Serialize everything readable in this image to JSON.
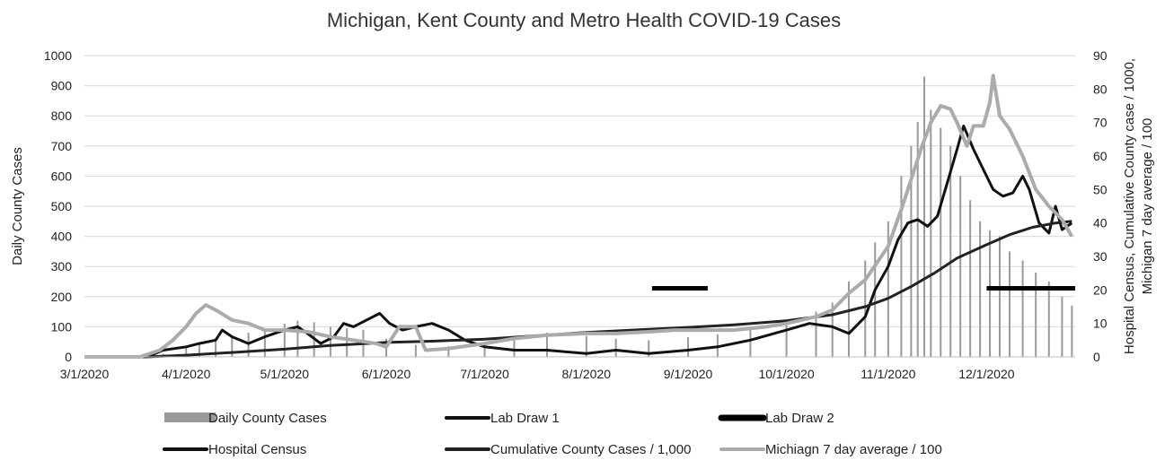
{
  "chart_data": {
    "type": "bar+line",
    "title": "Michigan, Kent County and Metro Health COVID-19 Cases",
    "ylabel_left": "Daily County Cases",
    "ylabel_right_line1": "Hospital Census, Cumulative County case / 1000,",
    "ylabel_right_line2": "Michigan 7 day average / 100",
    "ylim_left": [
      0,
      1000
    ],
    "ylim_right": [
      0,
      90
    ],
    "yticks_left": [
      "0",
      "100",
      "200",
      "300",
      "400",
      "500",
      "600",
      "700",
      "800",
      "900",
      "1000"
    ],
    "yticks_right": [
      "0",
      "10",
      "20",
      "30",
      "40",
      "50",
      "60",
      "70",
      "80",
      "90"
    ],
    "x_tick_labels": [
      "3/1/2020",
      "4/1/2020",
      "5/1/2020",
      "6/1/2020",
      "7/1/2020",
      "8/1/2020",
      "9/1/2020",
      "10/1/2020",
      "11/1/2020",
      "12/1/2020"
    ],
    "x_tick_dates": [
      "2020-03-01",
      "2020-04-01",
      "2020-05-01",
      "2020-06-01",
      "2020-07-01",
      "2020-08-01",
      "2020-09-01",
      "2020-10-01",
      "2020-11-01",
      "2020-12-01"
    ],
    "x_range": [
      "2020-03-01",
      "2020-12-28"
    ],
    "grid": true,
    "legend_position": "bottom",
    "legend": [
      {
        "label": "Daily County Cases",
        "style": "bar",
        "color": "#9a9a9a"
      },
      {
        "label": "Lab Draw 1",
        "style": "line",
        "color": "#111111"
      },
      {
        "label": "Lab Draw 2",
        "style": "thick-line",
        "color": "#000000"
      },
      {
        "label": "Hospital Census",
        "style": "line",
        "color": "#111111"
      },
      {
        "label": "Cumulative County Cases / 1,000",
        "style": "line",
        "color": "#222222"
      },
      {
        "label": "Michiagn  7 day average / 100",
        "style": "line",
        "color": "#ababab"
      }
    ],
    "series": [
      {
        "name": "Daily County Cases",
        "axis": "left",
        "type": "bar",
        "color": "#9a9a9a",
        "points": [
          [
            "2020-03-20",
            3
          ],
          [
            "2020-03-25",
            10
          ],
          [
            "2020-04-01",
            30
          ],
          [
            "2020-04-05",
            45
          ],
          [
            "2020-04-10",
            60
          ],
          [
            "2020-04-15",
            70
          ],
          [
            "2020-04-20",
            80
          ],
          [
            "2020-04-25",
            95
          ],
          [
            "2020-05-01",
            110
          ],
          [
            "2020-05-05",
            120
          ],
          [
            "2020-05-10",
            115
          ],
          [
            "2020-05-15",
            100
          ],
          [
            "2020-05-20",
            95
          ],
          [
            "2020-05-25",
            90
          ],
          [
            "2020-06-01",
            60
          ],
          [
            "2020-06-10",
            40
          ],
          [
            "2020-06-20",
            35
          ],
          [
            "2020-07-01",
            50
          ],
          [
            "2020-07-10",
            70
          ],
          [
            "2020-07-20",
            80
          ],
          [
            "2020-08-01",
            70
          ],
          [
            "2020-08-10",
            60
          ],
          [
            "2020-08-20",
            55
          ],
          [
            "2020-09-01",
            65
          ],
          [
            "2020-09-10",
            75
          ],
          [
            "2020-09-20",
            90
          ],
          [
            "2020-10-01",
            110
          ],
          [
            "2020-10-10",
            150
          ],
          [
            "2020-10-15",
            180
          ],
          [
            "2020-10-20",
            250
          ],
          [
            "2020-10-25",
            320
          ],
          [
            "2020-10-28",
            380
          ],
          [
            "2020-11-01",
            450
          ],
          [
            "2020-11-05",
            600
          ],
          [
            "2020-11-08",
            700
          ],
          [
            "2020-11-10",
            780
          ],
          [
            "2020-11-12",
            930
          ],
          [
            "2020-11-14",
            820
          ],
          [
            "2020-11-17",
            760
          ],
          [
            "2020-11-20",
            700
          ],
          [
            "2020-11-23",
            600
          ],
          [
            "2020-11-26",
            520
          ],
          [
            "2020-11-29",
            450
          ],
          [
            "2020-12-02",
            420
          ],
          [
            "2020-12-05",
            400
          ],
          [
            "2020-12-08",
            350
          ],
          [
            "2020-12-12",
            320
          ],
          [
            "2020-12-16",
            280
          ],
          [
            "2020-12-20",
            250
          ],
          [
            "2020-12-24",
            200
          ],
          [
            "2020-12-27",
            170
          ]
        ]
      },
      {
        "name": "Hospital Census",
        "axis": "right",
        "type": "line",
        "color": "#111111",
        "points": [
          [
            "2020-03-20",
            0
          ],
          [
            "2020-03-25",
            2
          ],
          [
            "2020-04-01",
            3
          ],
          [
            "2020-04-05",
            4
          ],
          [
            "2020-04-10",
            5
          ],
          [
            "2020-04-12",
            8
          ],
          [
            "2020-04-15",
            6
          ],
          [
            "2020-04-20",
            4
          ],
          [
            "2020-04-25",
            6
          ],
          [
            "2020-05-01",
            8
          ],
          [
            "2020-05-05",
            9
          ],
          [
            "2020-05-08",
            7
          ],
          [
            "2020-05-12",
            4
          ],
          [
            "2020-05-16",
            6
          ],
          [
            "2020-05-19",
            10
          ],
          [
            "2020-05-22",
            9
          ],
          [
            "2020-05-26",
            11
          ],
          [
            "2020-05-30",
            13
          ],
          [
            "2020-06-02",
            10
          ],
          [
            "2020-06-06",
            8
          ],
          [
            "2020-06-10",
            9
          ],
          [
            "2020-06-15",
            10
          ],
          [
            "2020-06-20",
            8
          ],
          [
            "2020-06-25",
            5
          ],
          [
            "2020-07-01",
            3
          ],
          [
            "2020-07-10",
            2
          ],
          [
            "2020-07-20",
            2
          ],
          [
            "2020-08-01",
            1
          ],
          [
            "2020-08-10",
            2
          ],
          [
            "2020-08-20",
            1
          ],
          [
            "2020-09-01",
            2
          ],
          [
            "2020-09-10",
            3
          ],
          [
            "2020-09-20",
            5
          ],
          [
            "2020-10-01",
            8
          ],
          [
            "2020-10-08",
            10
          ],
          [
            "2020-10-15",
            9
          ],
          [
            "2020-10-20",
            7
          ],
          [
            "2020-10-25",
            12
          ],
          [
            "2020-10-28",
            20
          ],
          [
            "2020-11-01",
            27
          ],
          [
            "2020-11-04",
            35
          ],
          [
            "2020-11-07",
            40
          ],
          [
            "2020-11-10",
            41
          ],
          [
            "2020-11-13",
            39
          ],
          [
            "2020-11-16",
            42
          ],
          [
            "2020-11-19",
            52
          ],
          [
            "2020-11-22",
            62
          ],
          [
            "2020-11-24",
            69
          ],
          [
            "2020-11-27",
            62
          ],
          [
            "2020-11-30",
            56
          ],
          [
            "2020-12-03",
            50
          ],
          [
            "2020-12-06",
            48
          ],
          [
            "2020-12-09",
            49
          ],
          [
            "2020-12-12",
            54
          ],
          [
            "2020-12-14",
            50
          ],
          [
            "2020-12-17",
            40
          ],
          [
            "2020-12-20",
            37
          ],
          [
            "2020-12-22",
            45
          ],
          [
            "2020-12-24",
            38
          ],
          [
            "2020-12-27",
            40
          ]
        ]
      },
      {
        "name": "Cumulative County Cases / 1,000",
        "axis": "right",
        "type": "line",
        "color": "#222222",
        "points": [
          [
            "2020-03-01",
            0
          ],
          [
            "2020-03-20",
            0
          ],
          [
            "2020-04-01",
            0.5
          ],
          [
            "2020-04-15",
            1.3
          ],
          [
            "2020-05-01",
            2.3
          ],
          [
            "2020-05-15",
            3.4
          ],
          [
            "2020-06-01",
            4.3
          ],
          [
            "2020-06-15",
            4.7
          ],
          [
            "2020-07-01",
            5.3
          ],
          [
            "2020-07-15",
            6.2
          ],
          [
            "2020-08-01",
            7.3
          ],
          [
            "2020-08-15",
            8.0
          ],
          [
            "2020-09-01",
            8.8
          ],
          [
            "2020-09-15",
            9.6
          ],
          [
            "2020-10-01",
            10.8
          ],
          [
            "2020-10-15",
            12.6
          ],
          [
            "2020-10-25",
            15
          ],
          [
            "2020-11-01",
            17.5
          ],
          [
            "2020-11-08",
            21
          ],
          [
            "2020-11-15",
            25
          ],
          [
            "2020-11-22",
            29.5
          ],
          [
            "2020-12-01",
            33.5
          ],
          [
            "2020-12-08",
            36.5
          ],
          [
            "2020-12-15",
            38.7
          ],
          [
            "2020-12-22",
            40
          ],
          [
            "2020-12-27",
            40.5
          ]
        ]
      },
      {
        "name": "Michiagn  7 day average / 100",
        "axis": "right",
        "type": "line",
        "color": "#ababab",
        "points": [
          [
            "2020-03-01",
            0
          ],
          [
            "2020-03-18",
            0
          ],
          [
            "2020-03-24",
            2
          ],
          [
            "2020-03-28",
            5
          ],
          [
            "2020-04-01",
            9
          ],
          [
            "2020-04-04",
            13
          ],
          [
            "2020-04-07",
            15.5
          ],
          [
            "2020-04-10",
            14
          ],
          [
            "2020-04-15",
            11
          ],
          [
            "2020-04-20",
            10
          ],
          [
            "2020-04-25",
            8
          ],
          [
            "2020-05-01",
            8
          ],
          [
            "2020-05-08",
            7.5
          ],
          [
            "2020-05-15",
            6
          ],
          [
            "2020-05-22",
            5
          ],
          [
            "2020-05-29",
            4
          ],
          [
            "2020-06-01",
            3
          ],
          [
            "2020-06-05",
            9
          ],
          [
            "2020-06-10",
            9
          ],
          [
            "2020-06-13",
            2
          ],
          [
            "2020-06-20",
            2.5
          ],
          [
            "2020-07-01",
            4
          ],
          [
            "2020-07-10",
            5.5
          ],
          [
            "2020-07-20",
            6.5
          ],
          [
            "2020-08-01",
            7
          ],
          [
            "2020-08-10",
            7
          ],
          [
            "2020-08-20",
            7.5
          ],
          [
            "2020-08-28",
            8
          ],
          [
            "2020-09-05",
            8
          ],
          [
            "2020-09-15",
            8
          ],
          [
            "2020-09-25",
            9
          ],
          [
            "2020-10-01",
            10
          ],
          [
            "2020-10-10",
            12
          ],
          [
            "2020-10-15",
            14
          ],
          [
            "2020-10-20",
            19
          ],
          [
            "2020-10-25",
            23
          ],
          [
            "2020-11-01",
            33
          ],
          [
            "2020-11-05",
            44
          ],
          [
            "2020-11-08",
            53
          ],
          [
            "2020-11-11",
            62
          ],
          [
            "2020-11-14",
            70
          ],
          [
            "2020-11-17",
            75
          ],
          [
            "2020-11-20",
            74
          ],
          [
            "2020-11-22",
            70
          ],
          [
            "2020-11-25",
            63
          ],
          [
            "2020-11-27",
            69
          ],
          [
            "2020-11-30",
            69
          ],
          [
            "2020-12-02",
            76
          ],
          [
            "2020-12-03",
            84
          ],
          [
            "2020-12-05",
            72
          ],
          [
            "2020-12-08",
            68
          ],
          [
            "2020-12-12",
            60
          ],
          [
            "2020-12-16",
            50
          ],
          [
            "2020-12-20",
            45
          ],
          [
            "2020-12-24",
            41
          ],
          [
            "2020-12-27",
            36
          ]
        ]
      },
      {
        "name": "Lab Draw 1",
        "axis": "right",
        "type": "segment",
        "color": "#000000",
        "points": [
          [
            "2020-08-21",
            20.5
          ],
          [
            "2020-09-07",
            20.5
          ]
        ]
      },
      {
        "name": "Lab Draw 2",
        "axis": "right",
        "type": "segment",
        "color": "#000000",
        "points": [
          [
            "2020-12-01",
            20.5
          ],
          [
            "2020-12-28",
            20.5
          ]
        ]
      }
    ]
  }
}
